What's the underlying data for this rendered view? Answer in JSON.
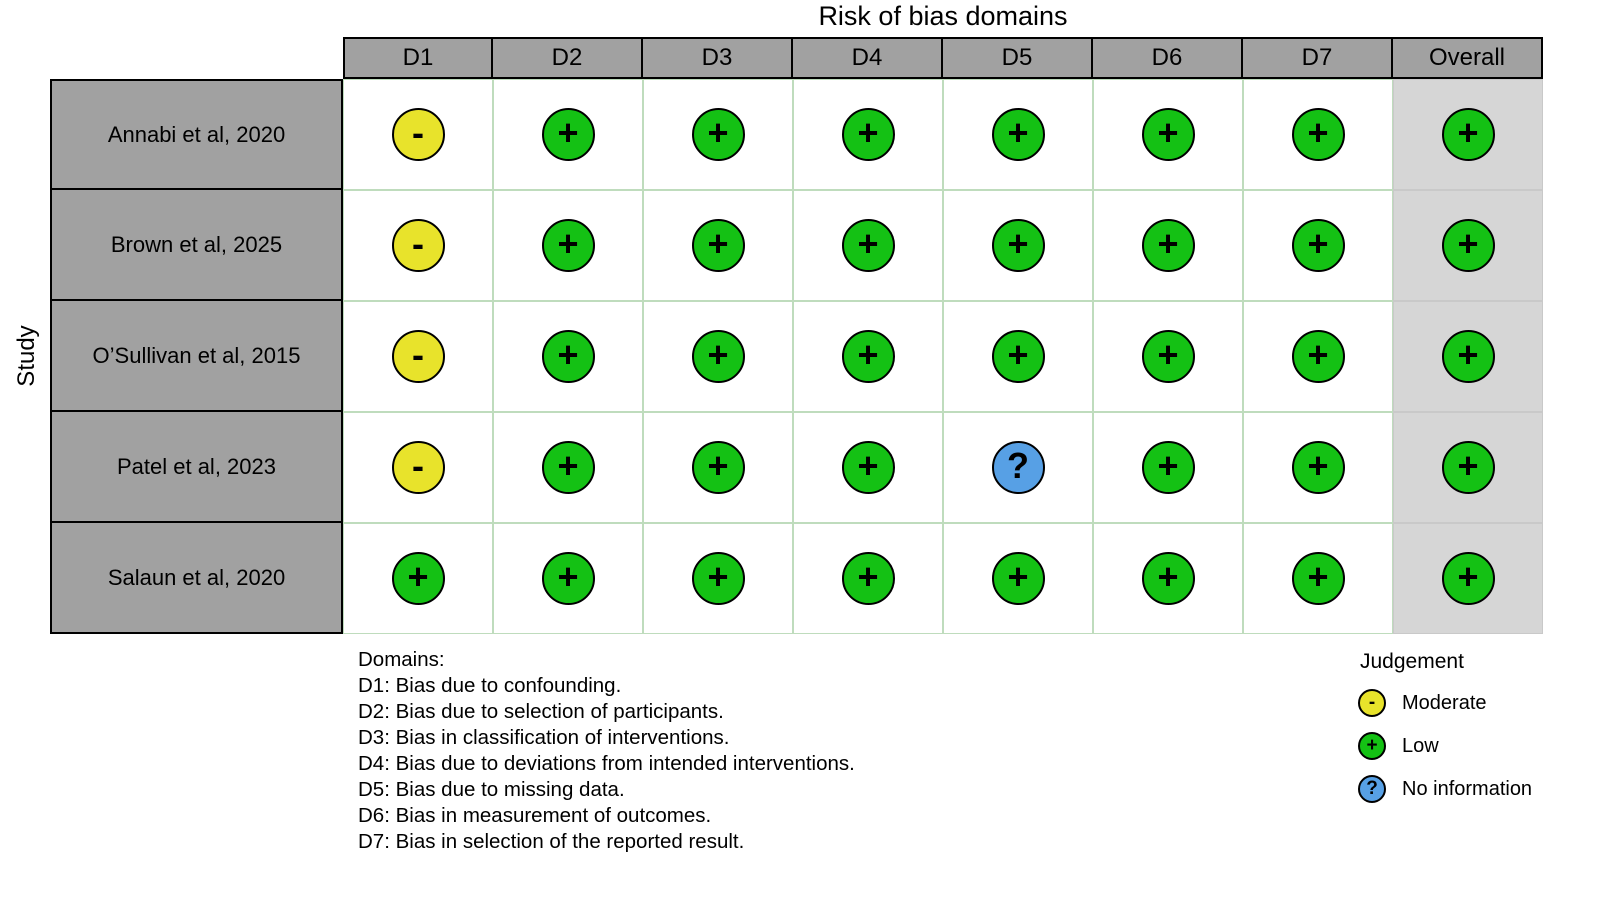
{
  "chart_data": {
    "type": "heatmap",
    "title": "Risk of bias domains",
    "ylabel": "Study",
    "columns": [
      "D1",
      "D2",
      "D3",
      "D4",
      "D5",
      "D6",
      "D7",
      "Overall"
    ],
    "studies": [
      "Annabi et al, 2020",
      "Brown et al, 2025",
      "O’Sullivan et al, 2015",
      "Patel et al, 2023",
      "Salaun et al, 2020"
    ],
    "judgements": [
      [
        "Moderate",
        "Low",
        "Low",
        "Low",
        "Low",
        "Low",
        "Low",
        "Low"
      ],
      [
        "Moderate",
        "Low",
        "Low",
        "Low",
        "Low",
        "Low",
        "Low",
        "Low"
      ],
      [
        "Moderate",
        "Low",
        "Low",
        "Low",
        "Low",
        "Low",
        "Low",
        "Low"
      ],
      [
        "Moderate",
        "Low",
        "Low",
        "Low",
        "No information",
        "Low",
        "Low",
        "Low"
      ],
      [
        "Low",
        "Low",
        "Low",
        "Low",
        "Low",
        "Low",
        "Low",
        "Low"
      ]
    ],
    "judgement_styles": {
      "Moderate": {
        "symbol": "-",
        "color": "#E8E32B"
      },
      "Low": {
        "symbol": "+",
        "color": "#14C114"
      },
      "No information": {
        "symbol": "?",
        "color": "#57A0E5"
      }
    },
    "legend": {
      "title": "Judgement",
      "items": [
        {
          "label": "Moderate",
          "judgement": "Moderate"
        },
        {
          "label": "Low",
          "judgement": "Low"
        },
        {
          "label": "No information",
          "judgement": "No information"
        }
      ]
    },
    "footnotes": {
      "heading": "Domains:",
      "lines": [
        "D1: Bias due to confounding.",
        "D2: Bias due to selection of participants.",
        "D3: Bias in classification of interventions.",
        "D4: Bias due to deviations from intended interventions.",
        "D5: Bias due to missing data.",
        "D6: Bias in measurement of outcomes.",
        "D7: Bias in selection of the reported result."
      ]
    }
  }
}
